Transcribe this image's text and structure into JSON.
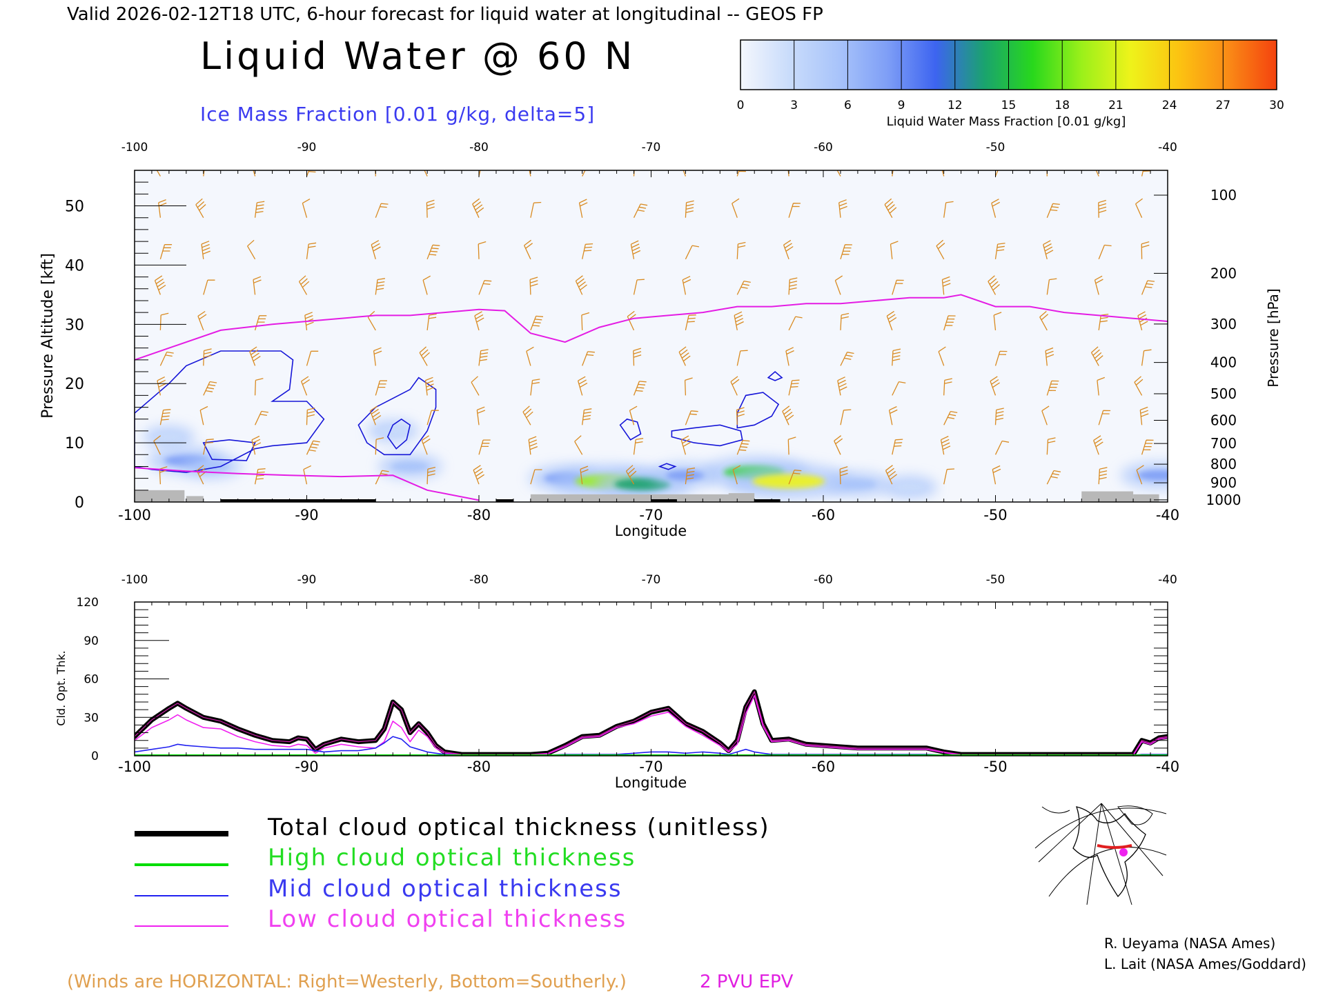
{
  "header": {
    "valid_line": "Valid 2026-02-12T18 UTC, 6-hour forecast for liquid water at longitudinal -- GEOS FP",
    "title": "Liquid Water @ 60 N",
    "subtitle": "Ice Mass Fraction [0.01 g/kg, delta=5]"
  },
  "colorbar": {
    "label": "Liquid Water Mass Fraction [0.01 g/kg]",
    "ticks": [
      "0",
      "3",
      "6",
      "9",
      "12",
      "15",
      "18",
      "21",
      "24",
      "27",
      "30"
    ],
    "colors": [
      "#f4f7fd",
      "#c9dcfb",
      "#a9c4fa",
      "#7f9ff6",
      "#3d64f0",
      "#1aa36e",
      "#28d81c",
      "#9bf01a",
      "#eef31a",
      "#fcc311",
      "#fa8b16",
      "#f4420e"
    ]
  },
  "chart_data": [
    {
      "type": "heatmap",
      "title": "Liquid Water @ 60 N",
      "xlabel": "Longitude",
      "ylabel": "Pressure Altitude [kft]",
      "y2label": "Pressure [hPa]",
      "xlim": [
        -100,
        -40
      ],
      "ylim": [
        0,
        56
      ],
      "x_ticks": [
        "-100",
        "-90",
        "-80",
        "-70",
        "-60",
        "-50",
        "-40"
      ],
      "y_ticks": [
        "0",
        "10",
        "20",
        "30",
        "40",
        "50"
      ],
      "pressure_ticks": [
        "100",
        "200",
        "300",
        "400",
        "500",
        "600",
        "700",
        "800",
        "900",
        "1000"
      ],
      "pressure_values": [
        100,
        200,
        300,
        400,
        500,
        600,
        700,
        800,
        900,
        1000
      ],
      "liquid_water_blobs": [
        {
          "lon": -97,
          "alt": 7,
          "value": 9
        },
        {
          "lon": -95.5,
          "alt": 6,
          "value": 5
        },
        {
          "lon": -98,
          "alt": 11,
          "value": 3
        },
        {
          "lon": -84,
          "alt": 6,
          "value": 6
        },
        {
          "lon": -85,
          "alt": 12,
          "value": 3
        },
        {
          "lon": -75,
          "alt": 4,
          "value": 8
        },
        {
          "lon": -72.5,
          "alt": 3.5,
          "value": 18
        },
        {
          "lon": -70.5,
          "alt": 3,
          "value": 14
        },
        {
          "lon": -68,
          "alt": 4.5,
          "value": 7
        },
        {
          "lon": -64,
          "alt": 5,
          "value": 16
        },
        {
          "lon": -62,
          "alt": 3.5,
          "value": 21
        },
        {
          "lon": -58,
          "alt": 3,
          "value": 6
        },
        {
          "lon": -55,
          "alt": 2.5,
          "value": 4
        },
        {
          "lon": -40.5,
          "alt": 4.5,
          "value": 9
        }
      ],
      "epv_2pvu_alt": {
        "lon": [
          -100,
          -98,
          -95,
          -92,
          -90,
          -88,
          -86,
          -84,
          -82,
          -80,
          -78.5,
          -77,
          -75,
          -73,
          -71,
          -69,
          -67,
          -65,
          -63,
          -61,
          -59,
          -57,
          -55,
          -53,
          -52,
          -50,
          -48,
          -46,
          -44,
          -42,
          -40
        ],
        "alt": [
          24,
          26,
          29,
          30,
          30.5,
          31,
          31.5,
          31.5,
          32,
          32.5,
          32.3,
          28.5,
          27,
          29.5,
          31,
          31.5,
          32,
          33,
          33,
          33.5,
          33.5,
          34,
          34.5,
          34.5,
          35,
          33,
          33,
          32,
          31.5,
          31,
          30.5
        ]
      },
      "ice_contour_levels": [
        5,
        10
      ]
    },
    {
      "type": "line",
      "xlabel": "Longitude",
      "ylabel": "Cld. Opt. Thk.",
      "xlim": [
        -100,
        -40
      ],
      "ylim": [
        0,
        120
      ],
      "x_ticks": [
        "-100",
        "-90",
        "-80",
        "-70",
        "-60",
        "-50",
        "-40"
      ],
      "y_ticks": [
        "0",
        "30",
        "60",
        "90",
        "120"
      ],
      "x": [
        -100,
        -99,
        -98,
        -97.5,
        -97,
        -96,
        -95,
        -94,
        -93,
        -92,
        -91,
        -90.5,
        -90,
        -89.5,
        -89,
        -88,
        -87,
        -86,
        -85.5,
        -85,
        -84.5,
        -84,
        -83.5,
        -83,
        -82.5,
        -82,
        -81,
        -80,
        -79,
        -78,
        -77,
        -76,
        -75,
        -74,
        -73,
        -72,
        -71,
        -70,
        -69,
        -68,
        -67,
        -66,
        -65.5,
        -65,
        -64.5,
        -64,
        -63.5,
        -63,
        -62,
        -61,
        -60,
        -59,
        -58,
        -57,
        -56,
        -55,
        -54,
        -53,
        -52,
        -50,
        -48,
        -46,
        -44,
        -42,
        -41.5,
        -41,
        -40.5,
        -40
      ],
      "series": [
        {
          "name": "Total cloud optical thickness (unitless)",
          "color": "#000000",
          "values": [
            15,
            28,
            37,
            41,
            37,
            30,
            27,
            21,
            16,
            12,
            11,
            14,
            13,
            5,
            9,
            13,
            11,
            12,
            21,
            42,
            36,
            18,
            25,
            18,
            8,
            3,
            1,
            1,
            1,
            1,
            1,
            2,
            8,
            15,
            16,
            23,
            27,
            34,
            37,
            25,
            19,
            10,
            4,
            12,
            38,
            50,
            25,
            12,
            13,
            9,
            8,
            7,
            6,
            6,
            6,
            6,
            6,
            3,
            1,
            1,
            1,
            1,
            1,
            1,
            12,
            10,
            14,
            15
          ]
        },
        {
          "name": "High cloud optical thickness",
          "color": "#00dd00",
          "values": [
            0,
            0,
            0,
            0,
            0,
            0,
            0,
            0,
            0,
            0,
            0,
            0,
            0,
            0,
            0,
            0,
            0,
            0,
            0,
            0,
            0,
            0,
            0,
            0,
            0,
            0,
            0,
            0,
            0,
            0,
            0,
            0,
            0,
            0,
            0,
            0,
            0,
            0,
            0,
            0,
            0,
            0,
            0,
            0,
            0,
            0,
            0,
            0,
            0,
            0,
            0,
            0,
            0,
            0,
            0,
            0,
            0,
            0,
            0,
            0,
            0,
            0,
            0,
            0,
            0,
            0,
            0,
            0
          ]
        },
        {
          "name": "Mid cloud optical thickness",
          "color": "#2020f0",
          "values": [
            3,
            5,
            7,
            9,
            8,
            7,
            6,
            6,
            5,
            5,
            5,
            5,
            5,
            4,
            3,
            4,
            4,
            6,
            10,
            15,
            13,
            7,
            5,
            3,
            2,
            1,
            0.5,
            0.5,
            0.5,
            0.5,
            0.5,
            0.5,
            1,
            1,
            1,
            1,
            2,
            3,
            3,
            2,
            3,
            2,
            1,
            3,
            5,
            3,
            2,
            1,
            1,
            1,
            1,
            1,
            1,
            1,
            1,
            1,
            1,
            0.5,
            0.5,
            0.5,
            0.5,
            0.5,
            0.5,
            0.5,
            1,
            1,
            1,
            1
          ]
        },
        {
          "name": "Low cloud optical thickness",
          "color": "#f020f0",
          "values": [
            12,
            22,
            28,
            32,
            28,
            22,
            21,
            15,
            11,
            8,
            7,
            9,
            8,
            2,
            6,
            9,
            7,
            6,
            11,
            27,
            22,
            11,
            20,
            15,
            6,
            2,
            0.5,
            0.5,
            0.5,
            0.5,
            0.5,
            1.5,
            7,
            14,
            15,
            22,
            25,
            31,
            34,
            23,
            16,
            8,
            3,
            9,
            33,
            47,
            23,
            11,
            12,
            8,
            7,
            6,
            5,
            5,
            5,
            5,
            5,
            2.5,
            0.5,
            0.5,
            0.5,
            0.5,
            0.5,
            0.5,
            11,
            9,
            13,
            14
          ]
        }
      ]
    }
  ],
  "legend": {
    "total": "Total cloud optical thickness (unitless)",
    "high": "High cloud optical thickness",
    "mid": "Mid cloud optical thickness",
    "low": "Low cloud optical thickness"
  },
  "footer": {
    "winds_note": "(Winds are HORIZONTAL: Right=Westerly, Bottom=Southerly.)",
    "epv_note": "2 PVU EPV",
    "credit1": "R. Ueyama (NASA Ames)",
    "credit2": "L. Lait (NASA Ames/Goddard)"
  }
}
